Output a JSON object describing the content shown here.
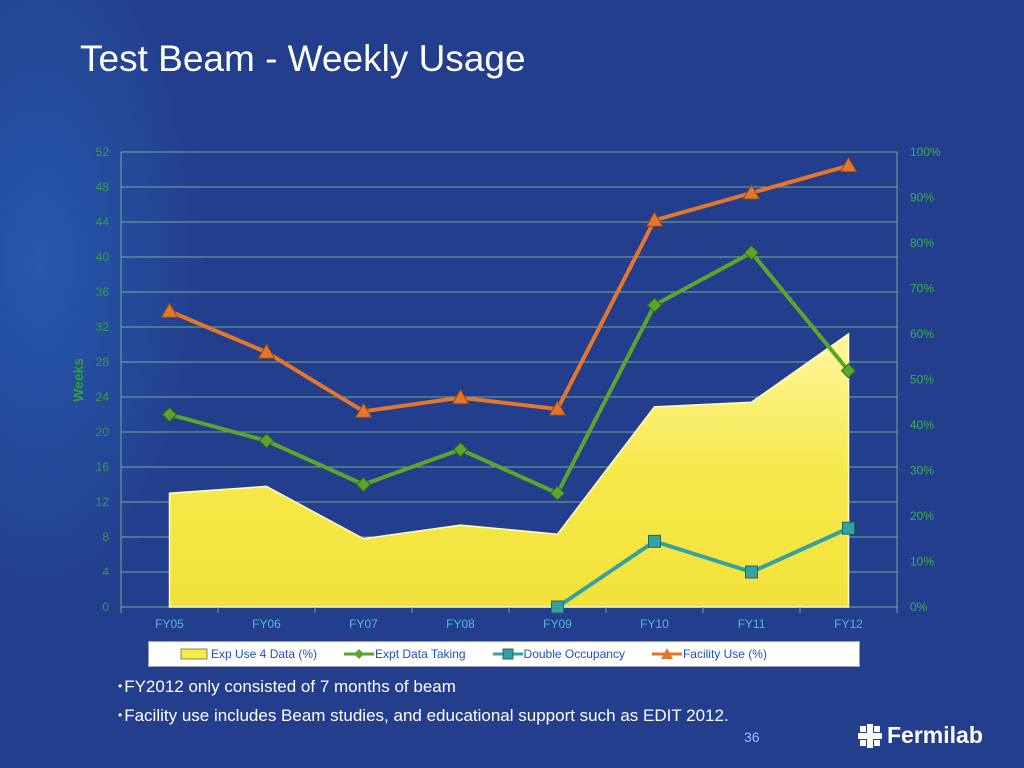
{
  "slide": {
    "title": "Test Beam - Weekly Usage",
    "bullets": [
      "FY2012 only consisted of 7 months of beam",
      "Facility use includes Beam studies, and educational support such as EDIT 2012."
    ],
    "page_number": "36",
    "logo_text": "Fermilab"
  },
  "colors": {
    "background": "#233e8c",
    "exp_use_fill": "#f6e94a",
    "expt_data_taking": "#5aa62c",
    "double_occupancy": "#35a2a0",
    "facility_use": "#e2762a",
    "gridline": "#7aa890",
    "left_axis_label": "#2ea03a",
    "right_axis_label": "#35b04a"
  },
  "chart_data": {
    "type": "line",
    "categories": [
      "FY05",
      "FY06",
      "FY07",
      "FY08",
      "FY09",
      "FY10",
      "FY11",
      "FY12"
    ],
    "ylabel": "Weeks",
    "ylim": [
      0,
      52
    ],
    "yticks": [
      "0",
      "4",
      "8",
      "12",
      "16",
      "20",
      "24",
      "28",
      "32",
      "36",
      "40",
      "44",
      "48",
      "52"
    ],
    "y2lim": [
      0,
      100
    ],
    "y2ticks": [
      "0%",
      "10%",
      "20%",
      "30%",
      "40%",
      "50%",
      "60%",
      "70%",
      "80%",
      "90%",
      "100%"
    ],
    "grid": true,
    "legend_position": "bottom",
    "series": [
      {
        "name": "Exp Use 4 Data (%)",
        "type": "area",
        "axis": "right",
        "values": [
          25,
          26.5,
          15,
          18,
          16,
          44,
          45,
          60
        ]
      },
      {
        "name": "Expt Data Taking",
        "type": "line",
        "marker": "diamond",
        "axis": "left",
        "values": [
          22,
          19,
          14,
          18,
          13,
          34.5,
          40.5,
          27
        ]
      },
      {
        "name": "Double Occupancy",
        "type": "line",
        "marker": "square",
        "axis": "left",
        "values": [
          null,
          null,
          null,
          null,
          0,
          7.5,
          4,
          9
        ]
      },
      {
        "name": "Facility Use (%)",
        "type": "line",
        "marker": "triangle",
        "axis": "right",
        "values": [
          65,
          56,
          43,
          46,
          43.5,
          85,
          91,
          97
        ]
      }
    ]
  }
}
